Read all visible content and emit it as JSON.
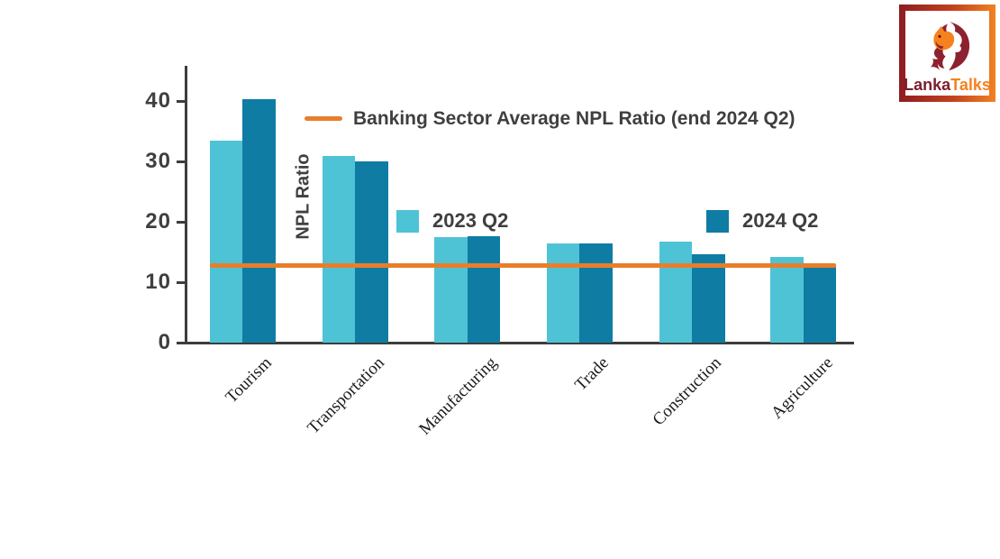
{
  "logo": {
    "brand_first": "Lanka",
    "brand_second": "Talks",
    "colors": {
      "maroon": "#7c1e2e",
      "orange": "#f6821f"
    }
  },
  "chart_data": {
    "type": "bar",
    "title": "",
    "ylabel": "NPL Ratio",
    "xlabel": "",
    "categories": [
      "Tourism",
      "Transportation",
      "Manufacturing",
      "Trade",
      "Construction",
      "Agriculture"
    ],
    "series": [
      {
        "name": "2023 Q2",
        "color": "#4fc3d6",
        "values": [
          33.5,
          31.0,
          17.5,
          16.4,
          16.8,
          14.2
        ]
      },
      {
        "name": "2024 Q2",
        "color": "#0f7ca4",
        "values": [
          40.3,
          30.1,
          17.6,
          16.4,
          14.7,
          12.6
        ]
      }
    ],
    "reference_line": {
      "label": "Banking Sector Average NPL Ratio (end 2024 Q2)",
      "value": 12.8,
      "color": "#e87e2b"
    },
    "yticks": [
      0,
      10,
      20,
      30,
      40
    ],
    "ylim": [
      0,
      44
    ],
    "grid": false,
    "legend_position": "inside-plot",
    "axis_color": "#3d3d3d"
  }
}
